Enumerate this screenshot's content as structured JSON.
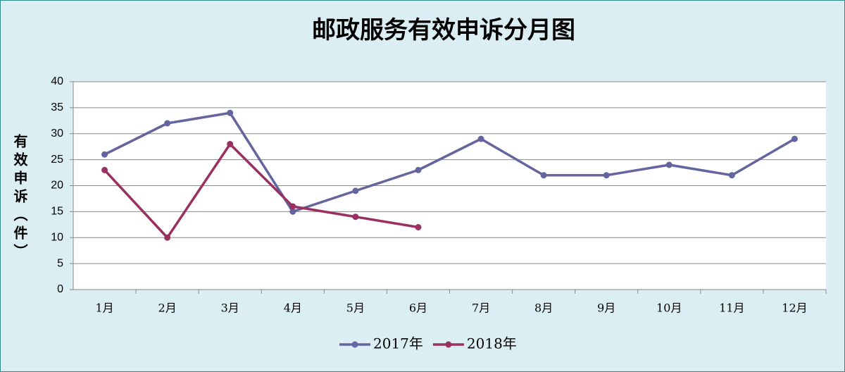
{
  "chart_data": {
    "type": "line",
    "title": "邮政服务有效申诉分月图",
    "y_label": "有效申诉（件）",
    "categories": [
      "1月",
      "2月",
      "3月",
      "4月",
      "5月",
      "6月",
      "7月",
      "8月",
      "9月",
      "10月",
      "11月",
      "12月"
    ],
    "series": [
      {
        "name": "2017年",
        "color": "#64649e",
        "values": [
          26,
          32,
          34,
          15,
          19,
          23,
          29,
          22,
          22,
          24,
          22,
          29
        ]
      },
      {
        "name": "2018年",
        "color": "#9a3062",
        "values": [
          23,
          10,
          28,
          16,
          14,
          12,
          null,
          null,
          null,
          null,
          null,
          null
        ]
      }
    ],
    "ylim": [
      0,
      40
    ],
    "yticks": [
      0,
      5,
      10,
      15,
      20,
      25,
      30,
      35,
      40
    ],
    "grid": true,
    "legend": "bottom"
  }
}
